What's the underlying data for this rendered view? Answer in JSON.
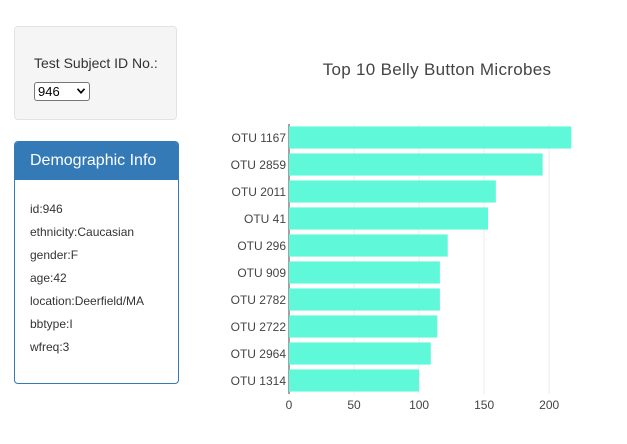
{
  "selector": {
    "label": "Test Subject ID No.:",
    "selected": "946"
  },
  "demographics": {
    "title": "Demographic Info",
    "rows": [
      "id:946",
      "ethnicity:Caucasian",
      "gender:F",
      "age:42",
      "location:Deerfield/MA",
      "bbtype:I",
      "wfreq:3"
    ]
  },
  "colors": {
    "bar": "#5ff8d8",
    "panel_accent": "#337ab7"
  },
  "chart_data": {
    "type": "bar",
    "orientation": "horizontal",
    "title": "Top 10 Belly Button Microbes",
    "categories": [
      "OTU 1167",
      "OTU 2859",
      "OTU 2011",
      "OTU 41",
      "OTU 296",
      "OTU 909",
      "OTU 2782",
      "OTU 2722",
      "OTU 2964",
      "OTU 1314"
    ],
    "values": [
      217,
      195,
      159,
      153,
      122,
      116,
      116,
      114,
      109,
      100
    ],
    "xticks": [
      0,
      50,
      100,
      150,
      200
    ],
    "xlim": [
      0,
      226
    ],
    "grid": true
  }
}
